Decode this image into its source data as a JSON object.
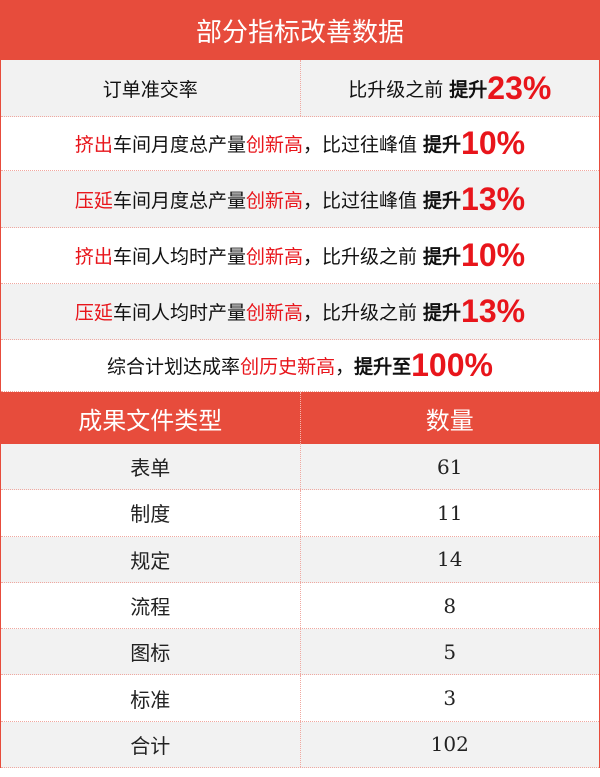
{
  "title": "部分指标改善数据",
  "metrics": [
    {
      "label": "订单准交率",
      "compare": "比升级之前",
      "boost": "提升",
      "value": "23%"
    },
    {
      "prefix": "挤出",
      "middle": "车间月度总产量",
      "highlight": "创新高",
      "suffix": "，比过往峰值 ",
      "boost": "提升",
      "value": "10%"
    },
    {
      "prefix": "压延",
      "middle": "车间月度总产量",
      "highlight": "创新高",
      "suffix": "，比过往峰值 ",
      "boost": "提升",
      "value": "13%"
    },
    {
      "prefix": "挤出",
      "middle": "车间人均时产量",
      "highlight": "创新高",
      "suffix": "，比升级之前 ",
      "boost": "提升",
      "value": "10%"
    },
    {
      "prefix": "压延",
      "middle": "车间人均时产量",
      "highlight": "创新高",
      "suffix": "，比升级之前 ",
      "boost": "提升",
      "value": "13%"
    },
    {
      "prefix": "",
      "middle": "综合计划达成率",
      "highlight": "创历史新高",
      "suffix": "，",
      "boost": "提升至",
      "value": "100%"
    }
  ],
  "files": {
    "headers": [
      "成果文件类型",
      "数量"
    ],
    "rows": [
      [
        "表单",
        "61"
      ],
      [
        "制度",
        "11"
      ],
      [
        "规定",
        "14"
      ],
      [
        "流程",
        "8"
      ],
      [
        "图标",
        "5"
      ],
      [
        "标准",
        "3"
      ],
      [
        "合计",
        "102"
      ]
    ]
  },
  "colors": {
    "accent": "#e74c3c",
    "highlight": "#e8151b",
    "stripe": "#f2f2f2"
  }
}
